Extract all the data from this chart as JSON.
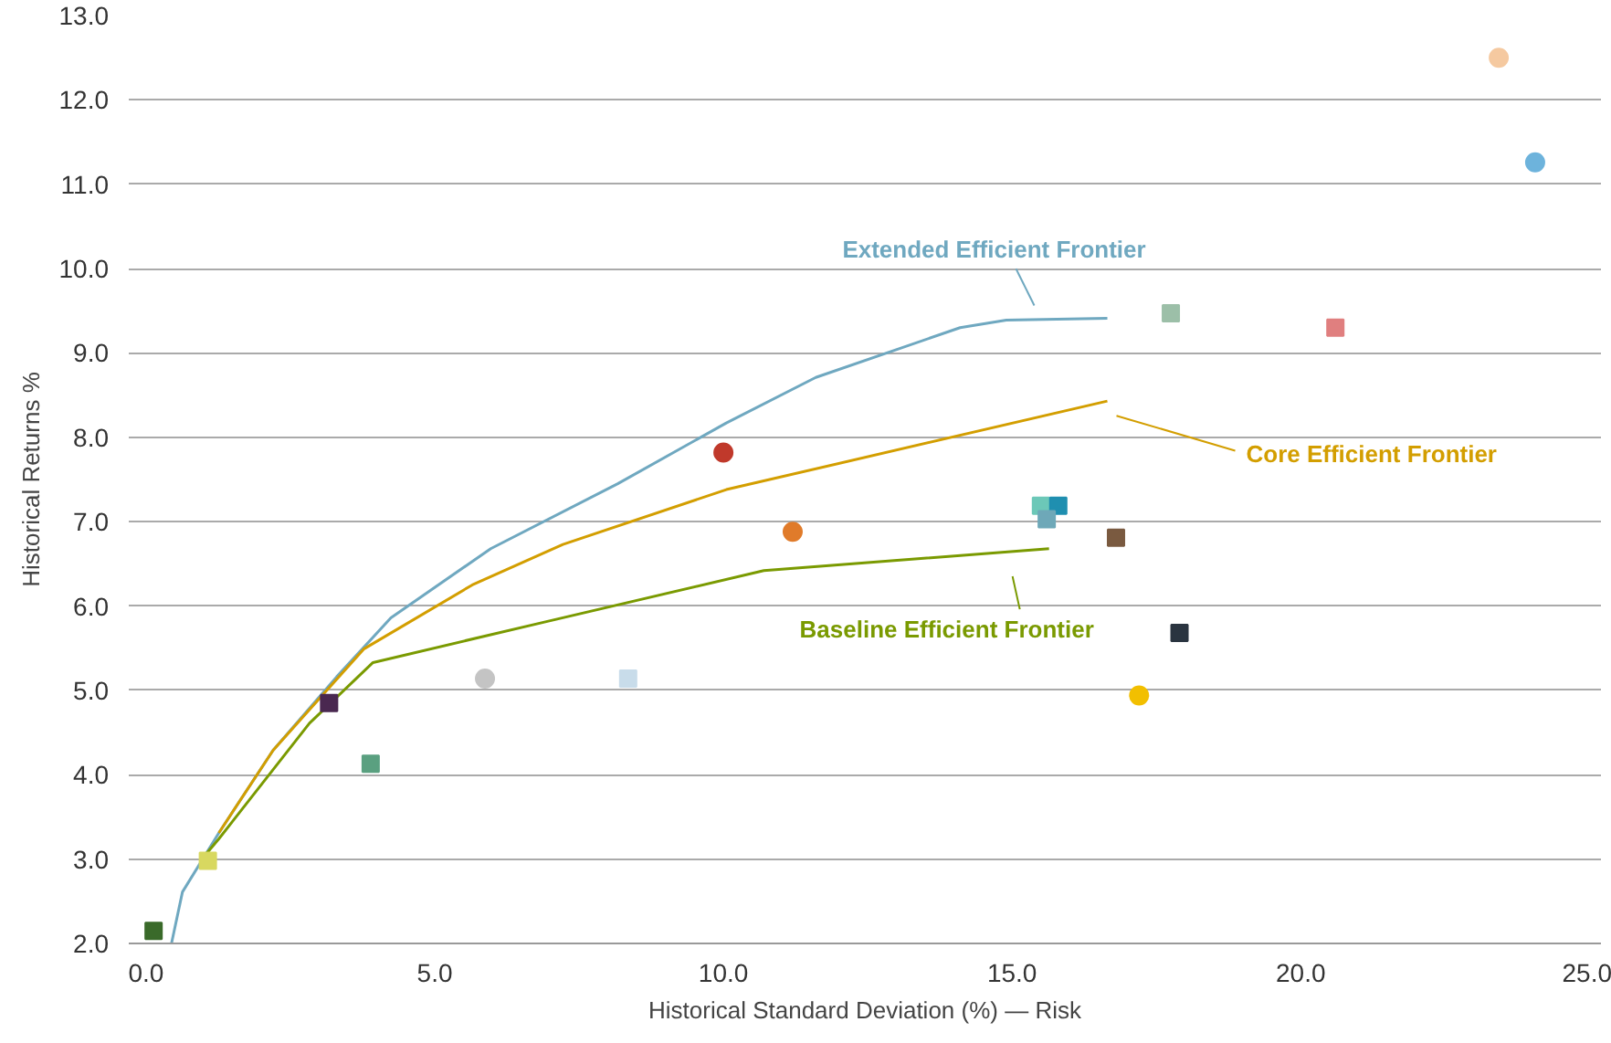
{
  "chart_data": {
    "type": "line",
    "xlabel": "Historical Standard Deviation (%) — Risk",
    "ylabel": "Historical Returns %",
    "xlim": [
      -0.3,
      25.2
    ],
    "ylim": [
      2.0,
      13.0
    ],
    "xticks": [
      {
        "value": 0,
        "label": "0.0"
      },
      {
        "value": 5,
        "label": "5.0"
      },
      {
        "value": 10,
        "label": "10.0"
      },
      {
        "value": 15,
        "label": "15.0"
      },
      {
        "value": 20,
        "label": "20.0"
      },
      {
        "value": 25,
        "label": "25.0"
      }
    ],
    "yticks": [
      {
        "value": 2,
        "label": "2.0"
      },
      {
        "value": 3,
        "label": "3.0"
      },
      {
        "value": 4,
        "label": "4.0"
      },
      {
        "value": 5,
        "label": "5.0"
      },
      {
        "value": 6,
        "label": "6.0"
      },
      {
        "value": 7,
        "label": "7.0"
      },
      {
        "value": 8,
        "label": "8.0"
      },
      {
        "value": 9,
        "label": "9.0"
      },
      {
        "value": 10,
        "label": "10.0"
      },
      {
        "value": 11,
        "label": "11.0"
      },
      {
        "value": 12,
        "label": "12.0"
      },
      {
        "value": 13,
        "label": "13.0"
      }
    ],
    "grid": "y",
    "series": [
      {
        "color": "#6fa8c0",
        "marker": "none",
        "x": [
          0.44,
          0.63,
          1.26,
          2.2,
          3.3,
          4.24,
          5.97,
          8.17,
          10.05,
          11.6,
          14.1,
          14.9,
          16.65
        ],
        "values": [
          2.0,
          2.61,
          3.31,
          4.29,
          5.16,
          5.86,
          6.68,
          7.45,
          8.17,
          8.71,
          9.3,
          9.39,
          9.41
        ]
      },
      {
        "color": "#d39e00",
        "marker": "none",
        "x": [
          1.26,
          2.2,
          3.77,
          5.65,
          7.22,
          10.05,
          16.65
        ],
        "values": [
          3.31,
          4.29,
          5.49,
          6.25,
          6.73,
          7.38,
          8.43
        ]
      },
      {
        "color": "#7a9a01",
        "marker": "none",
        "x": [
          0.94,
          1.26,
          2.83,
          3.93,
          6.9,
          10.7,
          15.64
        ],
        "values": [
          2.98,
          3.24,
          4.61,
          5.33,
          5.81,
          6.42,
          6.68
        ]
      },
      {
        "type": "scatter",
        "marker": "circle",
        "x": [
          23.43,
          24.06,
          10.0,
          11.2,
          17.2,
          5.87
        ],
        "values": [
          12.5,
          11.26,
          7.82,
          6.88,
          4.94,
          5.14
        ],
        "colors": [
          "#f5c9a0",
          "#6db3dc",
          "#c0392b",
          "#e07b2a",
          "#f2bf00",
          "#c4c4c4"
        ]
      },
      {
        "type": "scatter",
        "marker": "square",
        "x": [
          17.75,
          20.6,
          15.5,
          15.8,
          15.6,
          16.8,
          17.9,
          8.35,
          3.17,
          3.89,
          1.07,
          0.13
        ],
        "values": [
          9.47,
          9.3,
          7.19,
          7.19,
          7.03,
          6.81,
          5.68,
          5.14,
          4.85,
          4.13,
          2.98,
          2.15
        ],
        "colors": [
          "#9cbfa8",
          "#e07f7f",
          "#6cc8b8",
          "#1f8fb0",
          "#6ea8b8",
          "#7a5a40",
          "#2a3440",
          "#c8dcea",
          "#4a2850",
          "#5aa080",
          "#d8d860",
          "#3a6a2a"
        ]
      }
    ],
    "annotations": [
      "Extended Efficient Frontier",
      "Core Efficient Frontier",
      "Baseline Efficient Frontier"
    ]
  }
}
